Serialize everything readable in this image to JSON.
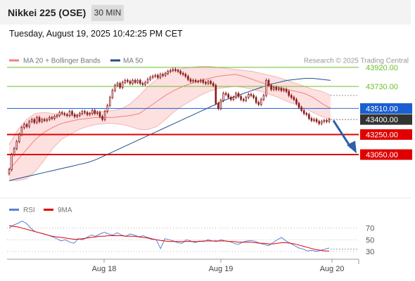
{
  "header": {
    "instrument": "Nikkei 225 (OSE)",
    "timeframe": "30 MIN",
    "timestamp": "Tuesday, August 19, 2025 10:42:25 PM CET"
  },
  "watermark": "Research © 2025 Trading Central",
  "colors": {
    "candle_up": "#8b1a1a",
    "candle_down": "#8b1a1a",
    "ma20_bands": "#f08080",
    "band_fill": "#fde0e0",
    "ma50": "#1f4e8c",
    "resistance": "#6bbf2a",
    "pivot": "#1a5fd1",
    "support": "#e00000",
    "last_price": "#333333",
    "arrow": "#2e5fa8",
    "rsi": "#5a7fd6",
    "rsi_ma": "#e00000"
  },
  "chart_data": [
    {
      "type": "candlestick",
      "title": "Nikkei 225 (OSE)",
      "legend": [
        {
          "name": "MA 20 + Bollinger Bands",
          "color": "#f08080"
        },
        {
          "name": "MA 50",
          "color": "#1f4e8c"
        }
      ],
      "x_ticks": [
        "Aug 18",
        "Aug 19",
        "Aug 20"
      ],
      "ylim": [
        42900,
        44000
      ],
      "close": [
        42900,
        43050,
        43110,
        43180,
        43250,
        43320,
        43350,
        43330,
        43380,
        43400,
        43370,
        43420,
        43380,
        43400,
        43390,
        43400,
        43420,
        43410,
        43430,
        43440,
        43470,
        43460,
        43450,
        43440,
        43480,
        43450,
        43430,
        43440,
        43460,
        43480,
        43470,
        43450,
        43460,
        43490,
        43460,
        43470,
        43430,
        43400,
        43480,
        43540,
        43620,
        43690,
        43740,
        43760,
        43720,
        43770,
        43790,
        43780,
        43760,
        43790,
        43770,
        43790,
        43760,
        43750,
        43770,
        43800,
        43820,
        43830,
        43840,
        43820,
        43850,
        43840,
        43860,
        43880,
        43890,
        43900,
        43890,
        43880,
        43860,
        43850,
        43830,
        43800,
        43780,
        43790,
        43780,
        43780,
        43790,
        43770,
        43760,
        43780,
        43760,
        43740,
        43560,
        43510,
        43590,
        43660,
        43650,
        43620,
        43600,
        43620,
        43660,
        43630,
        43600,
        43590,
        43620,
        43650,
        43640,
        43620,
        43570,
        43550,
        43600,
        43640,
        43790,
        43740,
        43700,
        43720,
        43700,
        43710,
        43690,
        43700,
        43680,
        43640,
        43620,
        43600,
        43560,
        43520,
        43490,
        43460,
        43450,
        43410,
        43390,
        43400,
        43380,
        43360,
        43380,
        43390,
        43380,
        43400
      ],
      "overlays": {
        "ma50": [
          42790,
          42810,
          42830,
          42850,
          42870,
          42890,
          42910,
          42930,
          42950,
          42970,
          43000,
          43040,
          43080,
          43120,
          43160,
          43200,
          43240,
          43280,
          43320,
          43360,
          43400,
          43440,
          43480,
          43520,
          43560,
          43600,
          43630,
          43660,
          43690,
          43720,
          43750,
          43770,
          43790,
          43800,
          43810,
          43810,
          43800,
          43790
        ],
        "ma20": [
          42900,
          43000,
          43100,
          43200,
          43270,
          43320,
          43360,
          43380,
          43400,
          43410,
          43420,
          43420,
          43420,
          43430,
          43440,
          43460,
          43520,
          43580,
          43640,
          43690,
          43730,
          43760,
          43790,
          43810,
          43830,
          43840,
          43850,
          43830,
          43800,
          43770,
          43740,
          43720,
          43700,
          43680,
          43660,
          43620,
          43560,
          43510
        ],
        "bb_upper": [
          43150,
          43300,
          43400,
          43460,
          43470,
          43460,
          43450,
          43440,
          43450,
          43460,
          43480,
          43480,
          43490,
          43510,
          43560,
          43640,
          43730,
          43800,
          43860,
          43890,
          43910,
          43920,
          43930,
          43930,
          43920,
          43910,
          43900,
          43890,
          43880,
          43860,
          43840,
          43820,
          43790,
          43760,
          43730,
          43700,
          43680,
          43640
        ],
        "bb_lower": [
          42790,
          42790,
          42810,
          42880,
          42990,
          43110,
          43200,
          43250,
          43300,
          43330,
          43350,
          43360,
          43360,
          43350,
          43330,
          43300,
          43300,
          43330,
          43400,
          43480,
          43540,
          43590,
          43640,
          43680,
          43710,
          43720,
          43730,
          43720,
          43700,
          43680,
          43650,
          43620,
          43580,
          43550,
          43510,
          43470,
          43430,
          43400
        ]
      },
      "levels": [
        {
          "label": "43920.00",
          "value": 43920,
          "kind": "resistance"
        },
        {
          "label": "43730.00",
          "value": 43730,
          "kind": "resistance"
        },
        {
          "label": "43510.00",
          "value": 43510,
          "kind": "pivot"
        },
        {
          "label": "43400.00",
          "value": 43400,
          "kind": "last"
        },
        {
          "label": "43250.00",
          "value": 43250,
          "kind": "support"
        },
        {
          "label": "43050.00",
          "value": 43050,
          "kind": "support"
        }
      ],
      "target_arrow": {
        "from": 43390,
        "to": 43090
      }
    },
    {
      "type": "line",
      "title": "RSI",
      "legend": [
        {
          "name": "RSI",
          "color": "#5a7fd6"
        },
        {
          "name": "9MA",
          "color": "#e00000"
        }
      ],
      "y_ticks": [
        70,
        50,
        30
      ],
      "ylim": [
        15,
        95
      ],
      "series": [
        {
          "name": "RSI",
          "values": [
            70,
            75,
            78,
            82,
            78,
            70,
            64,
            62,
            60,
            58,
            55,
            52,
            48,
            50,
            46,
            44,
            52,
            50,
            54,
            58,
            56,
            60,
            63,
            60,
            58,
            62,
            58,
            56,
            60,
            58,
            55,
            57,
            54,
            52,
            50,
            35,
            52,
            50,
            48,
            45,
            44,
            50,
            48,
            45,
            48,
            47,
            50,
            48,
            47,
            50,
            48,
            47,
            44,
            42,
            46,
            48,
            49,
            47,
            44,
            42,
            40,
            45,
            50,
            54,
            48,
            44,
            40,
            36,
            34,
            31,
            32,
            30,
            32,
            34,
            36
          ]
        },
        {
          "name": "9MA",
          "values": [
            74,
            73,
            72,
            70,
            68,
            66,
            64,
            62,
            60,
            58,
            56,
            55,
            54,
            53,
            52,
            51,
            51,
            52,
            53,
            54,
            55,
            56,
            56,
            57,
            57,
            57,
            57,
            56,
            56,
            56,
            55,
            54,
            53,
            51,
            50,
            49,
            48,
            47,
            47,
            47,
            47,
            47,
            47,
            47,
            47,
            48,
            48,
            48,
            48,
            48,
            48,
            47,
            47,
            46,
            46,
            46,
            46,
            45,
            44,
            44,
            43,
            43,
            44,
            45,
            45,
            44,
            43,
            41,
            39,
            37,
            35,
            33,
            32,
            31,
            31
          ]
        }
      ]
    }
  ]
}
